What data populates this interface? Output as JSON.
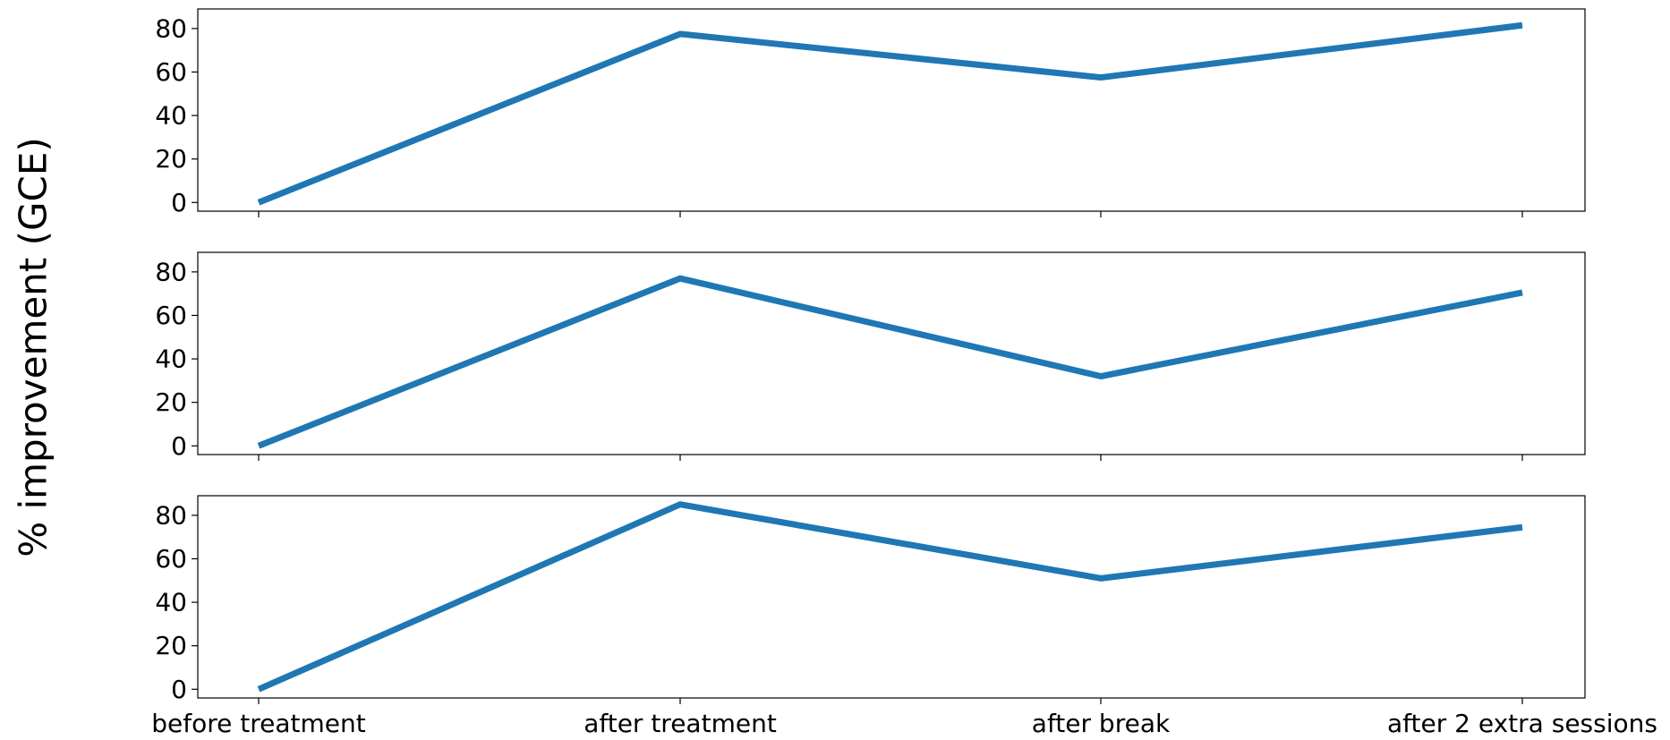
{
  "chart_data": {
    "type": "line",
    "ylabel": "% improvement (GCE)",
    "categories": [
      "before treatment",
      "after treatment",
      "after break",
      "after 2 extra sessions"
    ],
    "yticks": [
      0,
      20,
      40,
      60,
      80
    ],
    "ylim": [
      -4,
      89
    ],
    "grid": false,
    "line_color": "#1f77b4",
    "panels": [
      {
        "values": [
          0,
          77.5,
          57.5,
          81.5
        ]
      },
      {
        "values": [
          0,
          77,
          32,
          70.5
        ]
      },
      {
        "values": [
          0,
          85,
          51,
          74.5
        ]
      }
    ]
  }
}
